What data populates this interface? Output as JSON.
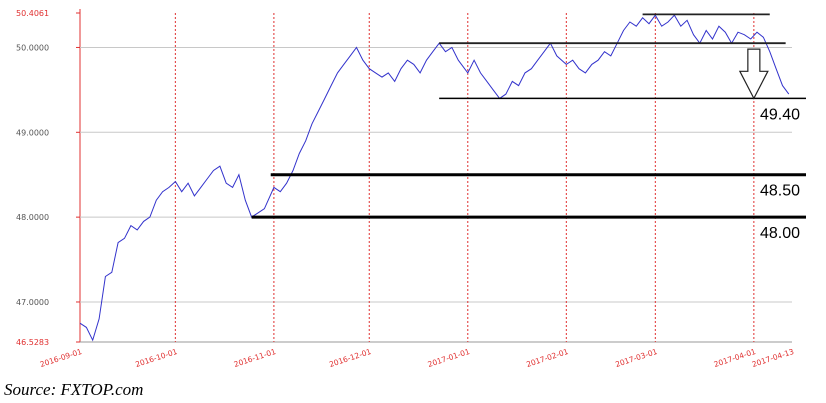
{
  "chart_data": {
    "type": "line",
    "ylim": [
      46.5283,
      50.4061
    ],
    "y_ticks": [
      {
        "value": 46.5283,
        "label": "46.5283",
        "style": "minmax"
      },
      {
        "value": 47.0,
        "label": "47.0000"
      },
      {
        "value": 48.0,
        "label": "48.0000"
      },
      {
        "value": 49.0,
        "label": "49.0000"
      },
      {
        "value": 50.0,
        "label": "50.0000"
      },
      {
        "value": 50.4061,
        "label": "50.4061",
        "style": "minmax"
      }
    ],
    "x_ticks": [
      {
        "date": "2016-09-01",
        "label": "2016-09-01"
      },
      {
        "date": "2016-10-01",
        "label": "2016-10-01"
      },
      {
        "date": "2016-11-01",
        "label": "2016-11-01"
      },
      {
        "date": "2016-12-01",
        "label": "2016-12-01"
      },
      {
        "date": "2017-01-01",
        "label": "2017-01-01"
      },
      {
        "date": "2017-02-01",
        "label": "2017-02-01"
      },
      {
        "date": "2017-03-01",
        "label": "2017-03-01"
      },
      {
        "date": "2017-04-01",
        "label": "2017-04-01"
      },
      {
        "date": "2017-04-13",
        "label": "2017-04-13"
      }
    ],
    "grid": true,
    "line_color": "#3333cc",
    "grid_color": "#e03030",
    "series": [
      {
        "values": [
          [
            "2016-09-01",
            46.75
          ],
          [
            "2016-09-03",
            46.7
          ],
          [
            "2016-09-05",
            46.55
          ],
          [
            "2016-09-07",
            46.8
          ],
          [
            "2016-09-09",
            47.3
          ],
          [
            "2016-09-11",
            47.35
          ],
          [
            "2016-09-13",
            47.7
          ],
          [
            "2016-09-15",
            47.75
          ],
          [
            "2016-09-17",
            47.9
          ],
          [
            "2016-09-19",
            47.85
          ],
          [
            "2016-09-21",
            47.95
          ],
          [
            "2016-09-23",
            48.0
          ],
          [
            "2016-09-25",
            48.2
          ],
          [
            "2016-09-27",
            48.3
          ],
          [
            "2016-09-29",
            48.35
          ],
          [
            "2016-10-01",
            48.42
          ],
          [
            "2016-10-03",
            48.3
          ],
          [
            "2016-10-05",
            48.4
          ],
          [
            "2016-10-07",
            48.25
          ],
          [
            "2016-10-09",
            48.35
          ],
          [
            "2016-10-11",
            48.45
          ],
          [
            "2016-10-13",
            48.55
          ],
          [
            "2016-10-15",
            48.6
          ],
          [
            "2016-10-17",
            48.4
          ],
          [
            "2016-10-19",
            48.35
          ],
          [
            "2016-10-21",
            48.5
          ],
          [
            "2016-10-23",
            48.2
          ],
          [
            "2016-10-25",
            48.0
          ],
          [
            "2016-10-27",
            48.05
          ],
          [
            "2016-10-29",
            48.1
          ],
          [
            "2016-11-01",
            48.35
          ],
          [
            "2016-11-03",
            48.3
          ],
          [
            "2016-11-05",
            48.4
          ],
          [
            "2016-11-07",
            48.55
          ],
          [
            "2016-11-09",
            48.75
          ],
          [
            "2016-11-11",
            48.9
          ],
          [
            "2016-11-13",
            49.1
          ],
          [
            "2016-11-15",
            49.25
          ],
          [
            "2016-11-17",
            49.4
          ],
          [
            "2016-11-19",
            49.55
          ],
          [
            "2016-11-21",
            49.7
          ],
          [
            "2016-11-23",
            49.8
          ],
          [
            "2016-11-25",
            49.9
          ],
          [
            "2016-11-27",
            50.0
          ],
          [
            "2016-11-29",
            49.85
          ],
          [
            "2016-12-01",
            49.75
          ],
          [
            "2016-12-03",
            49.7
          ],
          [
            "2016-12-05",
            49.65
          ],
          [
            "2016-12-07",
            49.7
          ],
          [
            "2016-12-09",
            49.6
          ],
          [
            "2016-12-11",
            49.75
          ],
          [
            "2016-12-13",
            49.85
          ],
          [
            "2016-12-15",
            49.8
          ],
          [
            "2016-12-17",
            49.7
          ],
          [
            "2016-12-19",
            49.85
          ],
          [
            "2016-12-21",
            49.95
          ],
          [
            "2016-12-23",
            50.05
          ],
          [
            "2016-12-25",
            49.95
          ],
          [
            "2016-12-27",
            50.0
          ],
          [
            "2016-12-29",
            49.85
          ],
          [
            "2017-01-01",
            49.7
          ],
          [
            "2017-01-03",
            49.85
          ],
          [
            "2017-01-05",
            49.7
          ],
          [
            "2017-01-07",
            49.6
          ],
          [
            "2017-01-09",
            49.5
          ],
          [
            "2017-01-11",
            49.4
          ],
          [
            "2017-01-13",
            49.45
          ],
          [
            "2017-01-15",
            49.6
          ],
          [
            "2017-01-17",
            49.55
          ],
          [
            "2017-01-19",
            49.7
          ],
          [
            "2017-01-21",
            49.75
          ],
          [
            "2017-01-23",
            49.85
          ],
          [
            "2017-01-25",
            49.95
          ],
          [
            "2017-01-27",
            50.05
          ],
          [
            "2017-01-29",
            49.9
          ],
          [
            "2017-02-01",
            49.8
          ],
          [
            "2017-02-03",
            49.85
          ],
          [
            "2017-02-05",
            49.75
          ],
          [
            "2017-02-07",
            49.7
          ],
          [
            "2017-02-09",
            49.8
          ],
          [
            "2017-02-11",
            49.85
          ],
          [
            "2017-02-13",
            49.95
          ],
          [
            "2017-02-15",
            49.9
          ],
          [
            "2017-02-17",
            50.05
          ],
          [
            "2017-02-19",
            50.2
          ],
          [
            "2017-02-21",
            50.3
          ],
          [
            "2017-02-23",
            50.25
          ],
          [
            "2017-02-25",
            50.35
          ],
          [
            "2017-02-27",
            50.28
          ],
          [
            "2017-03-01",
            50.38
          ],
          [
            "2017-03-03",
            50.25
          ],
          [
            "2017-03-05",
            50.3
          ],
          [
            "2017-03-07",
            50.38
          ],
          [
            "2017-03-09",
            50.25
          ],
          [
            "2017-03-11",
            50.32
          ],
          [
            "2017-03-13",
            50.15
          ],
          [
            "2017-03-15",
            50.05
          ],
          [
            "2017-03-17",
            50.2
          ],
          [
            "2017-03-19",
            50.1
          ],
          [
            "2017-03-21",
            50.25
          ],
          [
            "2017-03-23",
            50.18
          ],
          [
            "2017-03-25",
            50.05
          ],
          [
            "2017-03-27",
            50.18
          ],
          [
            "2017-03-29",
            50.15
          ],
          [
            "2017-03-31",
            50.1
          ],
          [
            "2017-04-02",
            50.18
          ],
          [
            "2017-04-04",
            50.12
          ],
          [
            "2017-04-06",
            49.95
          ],
          [
            "2017-04-08",
            49.75
          ],
          [
            "2017-04-10",
            49.55
          ],
          [
            "2017-04-12",
            49.45
          ]
        ]
      }
    ],
    "annotations": {
      "support_lines": [
        {
          "value": 49.4,
          "label": "49.40",
          "from": "2016-12-23",
          "to": "2017-04-13"
        },
        {
          "value": 48.5,
          "label": "48.50",
          "from": "2016-10-31",
          "to": "2017-04-13"
        },
        {
          "value": 48.0,
          "label": "48.00",
          "from": "2016-10-25",
          "to": "2017-04-13"
        }
      ],
      "channel_lines": [
        {
          "value": 50.39,
          "from": "2017-02-25",
          "to": "2017-04-06"
        },
        {
          "value": 50.05,
          "from": "2016-12-23",
          "to": "2017-04-11"
        }
      ],
      "arrow": {
        "date": "2017-04-01",
        "from_value": 49.98,
        "to_value": 49.4
      }
    }
  },
  "source": "Source: FXTOP.com"
}
